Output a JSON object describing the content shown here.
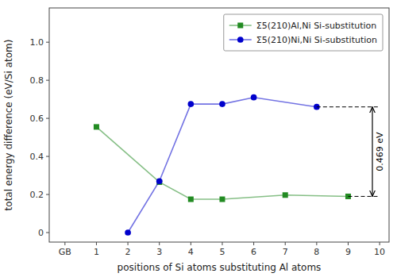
{
  "chart_data": {
    "type": "line",
    "x_label": "positions of Si atoms substituting Al atoms",
    "y_label": "total energy difference (eV/Si atom)",
    "series": [
      {
        "name": "Σ5(210)Al,Ni Si-substitution",
        "color": "#228B22",
        "marker": "square",
        "line_style": "solid",
        "x": [
          1,
          3,
          4,
          5,
          7,
          9
        ],
        "values": [
          0.555,
          0.265,
          0.175,
          0.175,
          0.197,
          0.19
        ]
      },
      {
        "name": "Σ5(210)Ni,Ni Si-substitution",
        "color": "#0000CC",
        "marker": "circle",
        "line_style": "solid",
        "x": [
          2,
          3,
          4,
          5,
          6,
          8
        ],
        "values": [
          0.0,
          0.27,
          0.675,
          0.675,
          0.71,
          0.66
        ]
      }
    ],
    "reference_lines": [
      {
        "x1": 9.0,
        "x2": 9.95,
        "y": 0.19,
        "color": "#000000",
        "line_style": "dashed"
      },
      {
        "x1": 8.0,
        "x2": 9.95,
        "y": 0.66,
        "color": "#000000",
        "line_style": "dashed"
      }
    ],
    "annotations": [
      {
        "text": "0.469 eV",
        "x": 9.77,
        "y_top": 0.66,
        "y_bottom": 0.19
      }
    ],
    "xlim": [
      -0.5,
      10.3
    ],
    "ylim": [
      -0.05,
      1.18
    ],
    "xticks": [
      {
        "value": 0,
        "label": "GB"
      },
      1,
      2,
      3,
      4,
      5,
      6,
      7,
      8,
      9,
      10
    ],
    "yticks": [
      0,
      0.2,
      0.4,
      0.6,
      0.8,
      {
        "value": 1.0,
        "label": "1.0"
      }
    ],
    "grid": false,
    "legend": "upper right"
  }
}
